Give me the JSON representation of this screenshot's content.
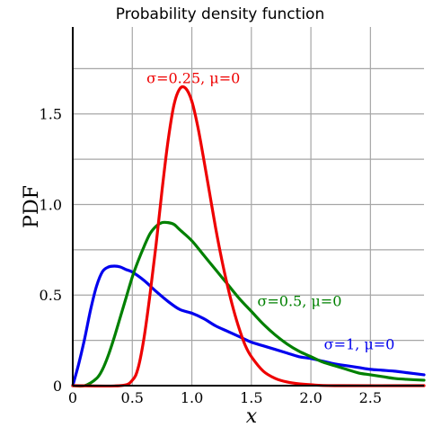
{
  "chart_data": {
    "type": "line",
    "title": "Probability density function",
    "xlabel": "x",
    "ylabel": "PDF",
    "xlim": [
      0,
      2.95
    ],
    "ylim": [
      0,
      1.98
    ],
    "grid": true,
    "x_ticks": [
      {
        "value": 0,
        "label": "0"
      },
      {
        "value": 0.5,
        "label": "0.5"
      },
      {
        "value": 1.0,
        "label": "1.0"
      },
      {
        "value": 1.5,
        "label": "1.5"
      },
      {
        "value": 2.0,
        "label": "2.0"
      },
      {
        "value": 2.5,
        "label": "2.5"
      }
    ],
    "y_ticks": [
      {
        "value": 0,
        "label": "0"
      },
      {
        "value": 0.5,
        "label": "0.5"
      },
      {
        "value": 1.0,
        "label": "1.0"
      },
      {
        "value": 1.5,
        "label": "1.5"
      }
    ],
    "series": [
      {
        "name": "σ=1, μ=0",
        "color": "#0000ee",
        "x": [
          0.0,
          0.05,
          0.1,
          0.15,
          0.2,
          0.25,
          0.3,
          0.35,
          0.4,
          0.45,
          0.5,
          0.6,
          0.7,
          0.8,
          0.9,
          1.0,
          1.1,
          1.2,
          1.3,
          1.4,
          1.5,
          1.6,
          1.7,
          1.8,
          1.9,
          2.0,
          2.1,
          2.2,
          2.3,
          2.4,
          2.5,
          2.6,
          2.7,
          2.8,
          2.95
        ],
        "values": [
          0.0,
          0.12,
          0.26,
          0.42,
          0.55,
          0.63,
          0.655,
          0.66,
          0.655,
          0.64,
          0.627,
          0.58,
          0.52,
          0.465,
          0.42,
          0.4,
          0.37,
          0.33,
          0.3,
          0.27,
          0.24,
          0.22,
          0.2,
          0.18,
          0.16,
          0.15,
          0.135,
          0.12,
          0.11,
          0.1,
          0.09,
          0.085,
          0.08,
          0.072,
          0.06
        ]
      },
      {
        "name": "σ=0.5, μ=0",
        "color": "#008000",
        "x": [
          0.0,
          0.1,
          0.2,
          0.25,
          0.3,
          0.35,
          0.4,
          0.45,
          0.5,
          0.55,
          0.6,
          0.65,
          0.7,
          0.75,
          0.8,
          0.85,
          0.9,
          1.0,
          1.1,
          1.2,
          1.3,
          1.4,
          1.5,
          1.6,
          1.7,
          1.8,
          1.9,
          2.0,
          2.1,
          2.2,
          2.3,
          2.4,
          2.5,
          2.6,
          2.7,
          2.8,
          2.95
        ],
        "values": [
          0.0,
          0.0,
          0.04,
          0.09,
          0.17,
          0.27,
          0.38,
          0.49,
          0.6,
          0.69,
          0.77,
          0.84,
          0.88,
          0.9,
          0.9,
          0.89,
          0.86,
          0.8,
          0.72,
          0.64,
          0.56,
          0.48,
          0.41,
          0.34,
          0.28,
          0.23,
          0.19,
          0.16,
          0.13,
          0.11,
          0.09,
          0.07,
          0.06,
          0.05,
          0.04,
          0.035,
          0.03
        ]
      },
      {
        "name": "σ=0.25, μ=0",
        "color": "#ee0000",
        "x": [
          0.0,
          0.4,
          0.5,
          0.55,
          0.6,
          0.65,
          0.7,
          0.75,
          0.8,
          0.85,
          0.9,
          0.95,
          1.0,
          1.05,
          1.1,
          1.15,
          1.2,
          1.25,
          1.3,
          1.35,
          1.4,
          1.45,
          1.5,
          1.6,
          1.7,
          1.8,
          1.9,
          2.0,
          2.2,
          2.95
        ],
        "values": [
          0.0,
          0.0,
          0.03,
          0.1,
          0.27,
          0.51,
          0.78,
          1.08,
          1.35,
          1.55,
          1.64,
          1.64,
          1.57,
          1.43,
          1.25,
          1.06,
          0.87,
          0.7,
          0.55,
          0.42,
          0.31,
          0.22,
          0.16,
          0.08,
          0.04,
          0.02,
          0.01,
          0.005,
          0.0,
          0.0
        ]
      }
    ],
    "annotations": [
      {
        "text": "σ=0.25, μ=0",
        "x": 0.62,
        "y": 1.67,
        "color": "#ee0000"
      },
      {
        "text": "σ=0.5, μ=0",
        "x": 1.55,
        "y": 0.44,
        "color": "#008000"
      },
      {
        "text": "σ=1, μ=0",
        "x": 2.11,
        "y": 0.2,
        "color": "#0000ee"
      }
    ]
  }
}
